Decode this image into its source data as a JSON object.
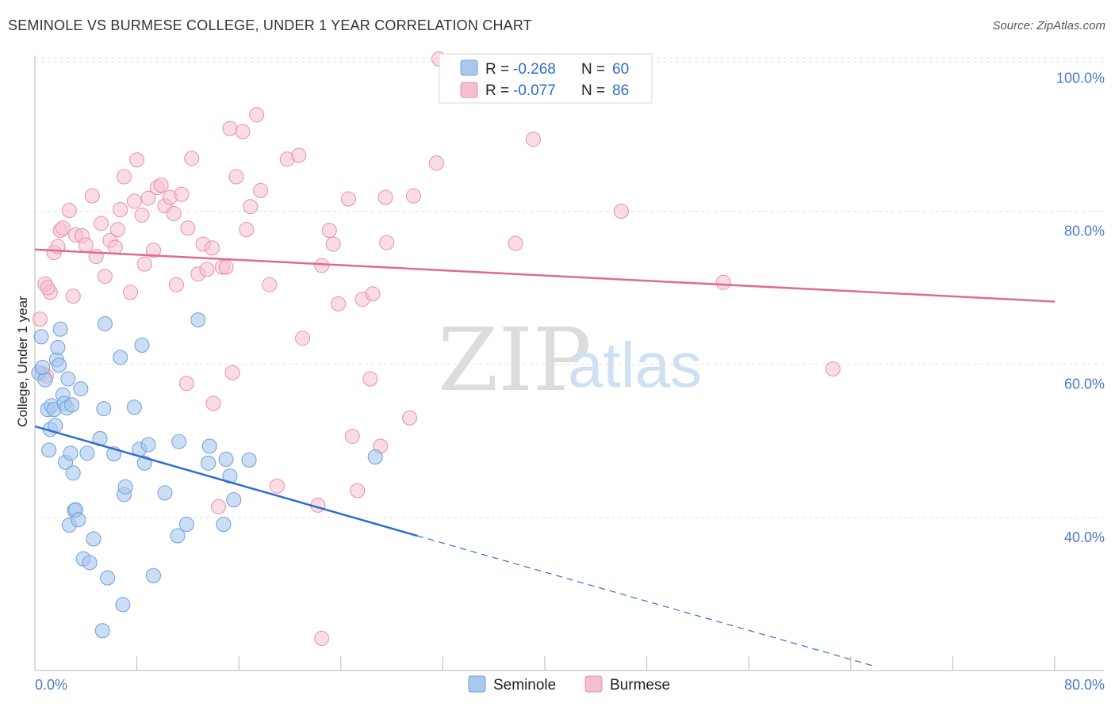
{
  "header": {
    "title": "SEMINOLE VS BURMESE COLLEGE, UNDER 1 YEAR CORRELATION CHART",
    "source": "Source: ZipAtlas.com"
  },
  "watermark": {
    "zip": "ZIP",
    "atlas": "atlas"
  },
  "legend": {
    "r_label": "R =",
    "n_label": "N =",
    "seminole_r": "-0.268",
    "seminole_n": "60",
    "burmese_r": "-0.077",
    "burmese_n": "86"
  },
  "bottom_legend": {
    "seminole": "Seminole",
    "burmese": "Burmese"
  },
  "chart_data": {
    "type": "scatter",
    "title": "SEMINOLE VS BURMESE COLLEGE, UNDER 1 YEAR CORRELATION CHART",
    "xlabel": "",
    "ylabel": "College, Under 1 year",
    "xlim": [
      0,
      80
    ],
    "ylim": [
      20,
      102
    ],
    "x_tick_labels": [
      "0.0%",
      "80.0%"
    ],
    "y_ticks": [
      40,
      60,
      80,
      100
    ],
    "y_tick_labels": [
      "40.0%",
      "60.0%",
      "80.0%",
      "100.0%"
    ],
    "colors": {
      "seminole_fill": "#a9c8ee",
      "seminole_stroke": "#6f9fdc",
      "seminole_line": "#2f6fcf",
      "burmese_fill": "#f6bfd0",
      "burmese_stroke": "#e890ac",
      "burmese_line": "#e06a93"
    },
    "series": [
      {
        "name": "Seminole",
        "r": -0.268,
        "n": 60,
        "trend": {
          "x0": 0,
          "y0": 51.9,
          "x1": 30,
          "y1": 37.6,
          "dash_to_x": 66,
          "dash_to_y": 20.5
        },
        "points": [
          [
            0.3,
            58.9
          ],
          [
            0.5,
            63.6
          ],
          [
            0.8,
            58.0
          ],
          [
            1.0,
            54.1
          ],
          [
            1.1,
            48.8
          ],
          [
            1.2,
            51.5
          ],
          [
            1.3,
            54.6
          ],
          [
            1.5,
            54.1
          ],
          [
            1.6,
            52.0
          ],
          [
            1.7,
            60.6
          ],
          [
            1.8,
            62.2
          ],
          [
            2.0,
            64.6
          ],
          [
            2.2,
            56.0
          ],
          [
            2.3,
            54.9
          ],
          [
            2.4,
            47.2
          ],
          [
            2.5,
            54.3
          ],
          [
            2.6,
            58.1
          ],
          [
            2.7,
            39.0
          ],
          [
            2.8,
            48.4
          ],
          [
            3.0,
            45.8
          ],
          [
            3.1,
            40.9
          ],
          [
            3.2,
            41.0
          ],
          [
            3.4,
            39.7
          ],
          [
            3.6,
            56.8
          ],
          [
            3.8,
            34.6
          ],
          [
            4.1,
            48.4
          ],
          [
            4.3,
            34.1
          ],
          [
            4.6,
            37.2
          ],
          [
            5.1,
            50.3
          ],
          [
            5.3,
            25.2
          ],
          [
            5.4,
            54.2
          ],
          [
            5.5,
            65.3
          ],
          [
            5.7,
            32.1
          ],
          [
            6.2,
            48.3
          ],
          [
            6.7,
            60.9
          ],
          [
            6.9,
            28.6
          ],
          [
            7.0,
            43.0
          ],
          [
            7.1,
            44.0
          ],
          [
            7.8,
            54.4
          ],
          [
            8.2,
            48.9
          ],
          [
            8.4,
            62.5
          ],
          [
            8.6,
            47.1
          ],
          [
            8.9,
            49.5
          ],
          [
            9.3,
            32.4
          ],
          [
            10.2,
            43.2
          ],
          [
            11.2,
            37.6
          ],
          [
            11.3,
            49.9
          ],
          [
            11.9,
            39.1
          ],
          [
            12.8,
            65.8
          ],
          [
            13.6,
            47.1
          ],
          [
            13.7,
            49.3
          ],
          [
            14.8,
            39.1
          ],
          [
            15.0,
            47.6
          ],
          [
            15.3,
            45.4
          ],
          [
            15.6,
            42.3
          ],
          [
            16.8,
            47.5
          ],
          [
            26.7,
            47.9
          ],
          [
            0.6,
            59.6
          ],
          [
            2.9,
            54.7
          ],
          [
            1.9,
            59.9
          ]
        ]
      },
      {
        "name": "Burmese",
        "r": -0.077,
        "n": 86,
        "trend": {
          "x0": 0,
          "y0": 75.0,
          "x1": 80,
          "y1": 68.2
        },
        "points": [
          [
            0.4,
            65.9
          ],
          [
            0.6,
            58.8
          ],
          [
            0.8,
            70.5
          ],
          [
            1.2,
            69.4
          ],
          [
            1.5,
            74.6
          ],
          [
            1.8,
            75.4
          ],
          [
            2.0,
            77.5
          ],
          [
            2.2,
            77.8
          ],
          [
            2.7,
            80.1
          ],
          [
            3.0,
            68.9
          ],
          [
            3.2,
            76.9
          ],
          [
            3.7,
            76.8
          ],
          [
            4.0,
            75.6
          ],
          [
            4.5,
            82.0
          ],
          [
            4.8,
            74.1
          ],
          [
            5.2,
            78.4
          ],
          [
            5.5,
            71.5
          ],
          [
            5.9,
            76.2
          ],
          [
            6.3,
            75.3
          ],
          [
            6.5,
            77.6
          ],
          [
            6.7,
            80.2
          ],
          [
            7.0,
            84.5
          ],
          [
            7.5,
            69.4
          ],
          [
            7.8,
            81.3
          ],
          [
            8.0,
            86.7
          ],
          [
            8.4,
            79.5
          ],
          [
            8.6,
            73.1
          ],
          [
            8.9,
            81.7
          ],
          [
            9.3,
            74.9
          ],
          [
            9.6,
            83.1
          ],
          [
            9.9,
            83.4
          ],
          [
            10.2,
            80.7
          ],
          [
            10.6,
            81.8
          ],
          [
            10.9,
            79.7
          ],
          [
            11.1,
            70.4
          ],
          [
            11.5,
            82.2
          ],
          [
            11.9,
            57.5
          ],
          [
            12.0,
            77.8
          ],
          [
            12.3,
            86.9
          ],
          [
            12.8,
            71.8
          ],
          [
            13.2,
            75.7
          ],
          [
            13.5,
            72.4
          ],
          [
            13.9,
            75.2
          ],
          [
            14.0,
            54.9
          ],
          [
            14.4,
            41.4
          ],
          [
            14.7,
            72.7
          ],
          [
            15.0,
            72.7
          ],
          [
            15.3,
            90.8
          ],
          [
            15.5,
            58.9
          ],
          [
            15.8,
            84.5
          ],
          [
            16.3,
            90.4
          ],
          [
            16.6,
            77.6
          ],
          [
            16.9,
            80.6
          ],
          [
            17.4,
            92.6
          ],
          [
            17.7,
            82.7
          ],
          [
            18.4,
            70.4
          ],
          [
            19.0,
            44.1
          ],
          [
            19.8,
            86.8
          ],
          [
            20.7,
            87.3
          ],
          [
            21.0,
            63.4
          ],
          [
            22.2,
            41.6
          ],
          [
            22.5,
            72.9
          ],
          [
            22.5,
            24.2
          ],
          [
            23.1,
            77.5
          ],
          [
            23.4,
            75.7
          ],
          [
            23.8,
            67.9
          ],
          [
            24.6,
            81.6
          ],
          [
            24.9,
            50.6
          ],
          [
            25.3,
            43.5
          ],
          [
            25.7,
            68.5
          ],
          [
            26.3,
            58.1
          ],
          [
            26.5,
            69.2
          ],
          [
            27.1,
            49.3
          ],
          [
            27.5,
            81.8
          ],
          [
            27.6,
            75.9
          ],
          [
            29.4,
            53.0
          ],
          [
            29.7,
            82.0
          ],
          [
            31.5,
            86.3
          ],
          [
            31.7,
            99.9
          ],
          [
            37.7,
            75.8
          ],
          [
            39.1,
            89.4
          ],
          [
            46.0,
            80.0
          ],
          [
            54.0,
            70.7
          ],
          [
            62.6,
            59.4
          ],
          [
            0.9,
            58.5
          ],
          [
            1.0,
            70.0
          ]
        ]
      }
    ]
  }
}
